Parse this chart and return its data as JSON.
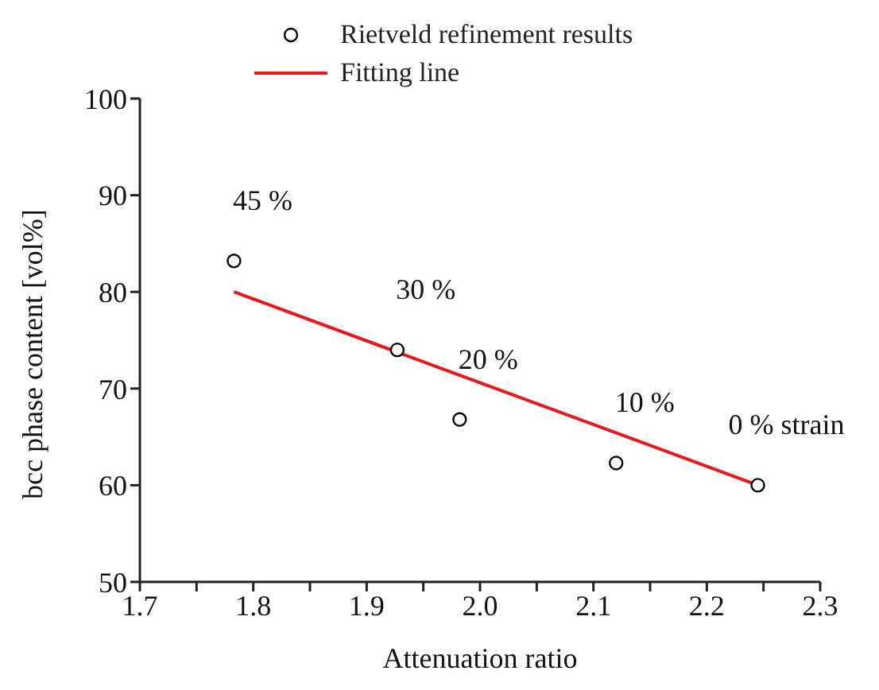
{
  "chart_data": {
    "type": "scatter",
    "xlabel": "Attenuation ratio",
    "ylabel": "bcc phase content [vol%]",
    "xlim": [
      1.7,
      2.3
    ],
    "xticks": [
      {
        "value": 1.7,
        "label": "1.7"
      },
      {
        "value": 1.8,
        "label": "1.8"
      },
      {
        "value": 1.9,
        "label": "1.9"
      },
      {
        "value": 2.0,
        "label": "2.0"
      },
      {
        "value": 2.1,
        "label": "2.1"
      },
      {
        "value": 2.2,
        "label": "2.2"
      },
      {
        "value": 2.3,
        "label": "2.3"
      }
    ],
    "ylim": [
      50,
      100
    ],
    "yticks": [
      50,
      60,
      70,
      80,
      90,
      100
    ],
    "legend": "top",
    "grid": false,
    "series": [
      {
        "name": "Rietveld refinement results",
        "type": "scatter",
        "marker": "circle",
        "color": "#000000",
        "x": [
          1.783,
          1.927,
          1.982,
          2.12,
          2.245
        ],
        "values": [
          83.2,
          74.0,
          66.8,
          62.3,
          60.0
        ]
      },
      {
        "name": "Fitting line",
        "type": "line",
        "marker": "none",
        "color": "#e8191b",
        "line_style": "solid",
        "x": [
          1.783,
          2.245
        ],
        "values": [
          80.0,
          60.0
        ]
      }
    ],
    "annotations": [
      {
        "text": "45 %",
        "x": 1.783,
        "y": 83.2
      },
      {
        "text": "30 %",
        "x": 1.927,
        "y": 74.0
      },
      {
        "text": "20 %",
        "x": 1.982,
        "y": 66.8
      },
      {
        "text": "10 %",
        "x": 2.12,
        "y": 62.3
      },
      {
        "text": "0 % strain",
        "x": 2.245,
        "y": 60.0
      }
    ]
  }
}
